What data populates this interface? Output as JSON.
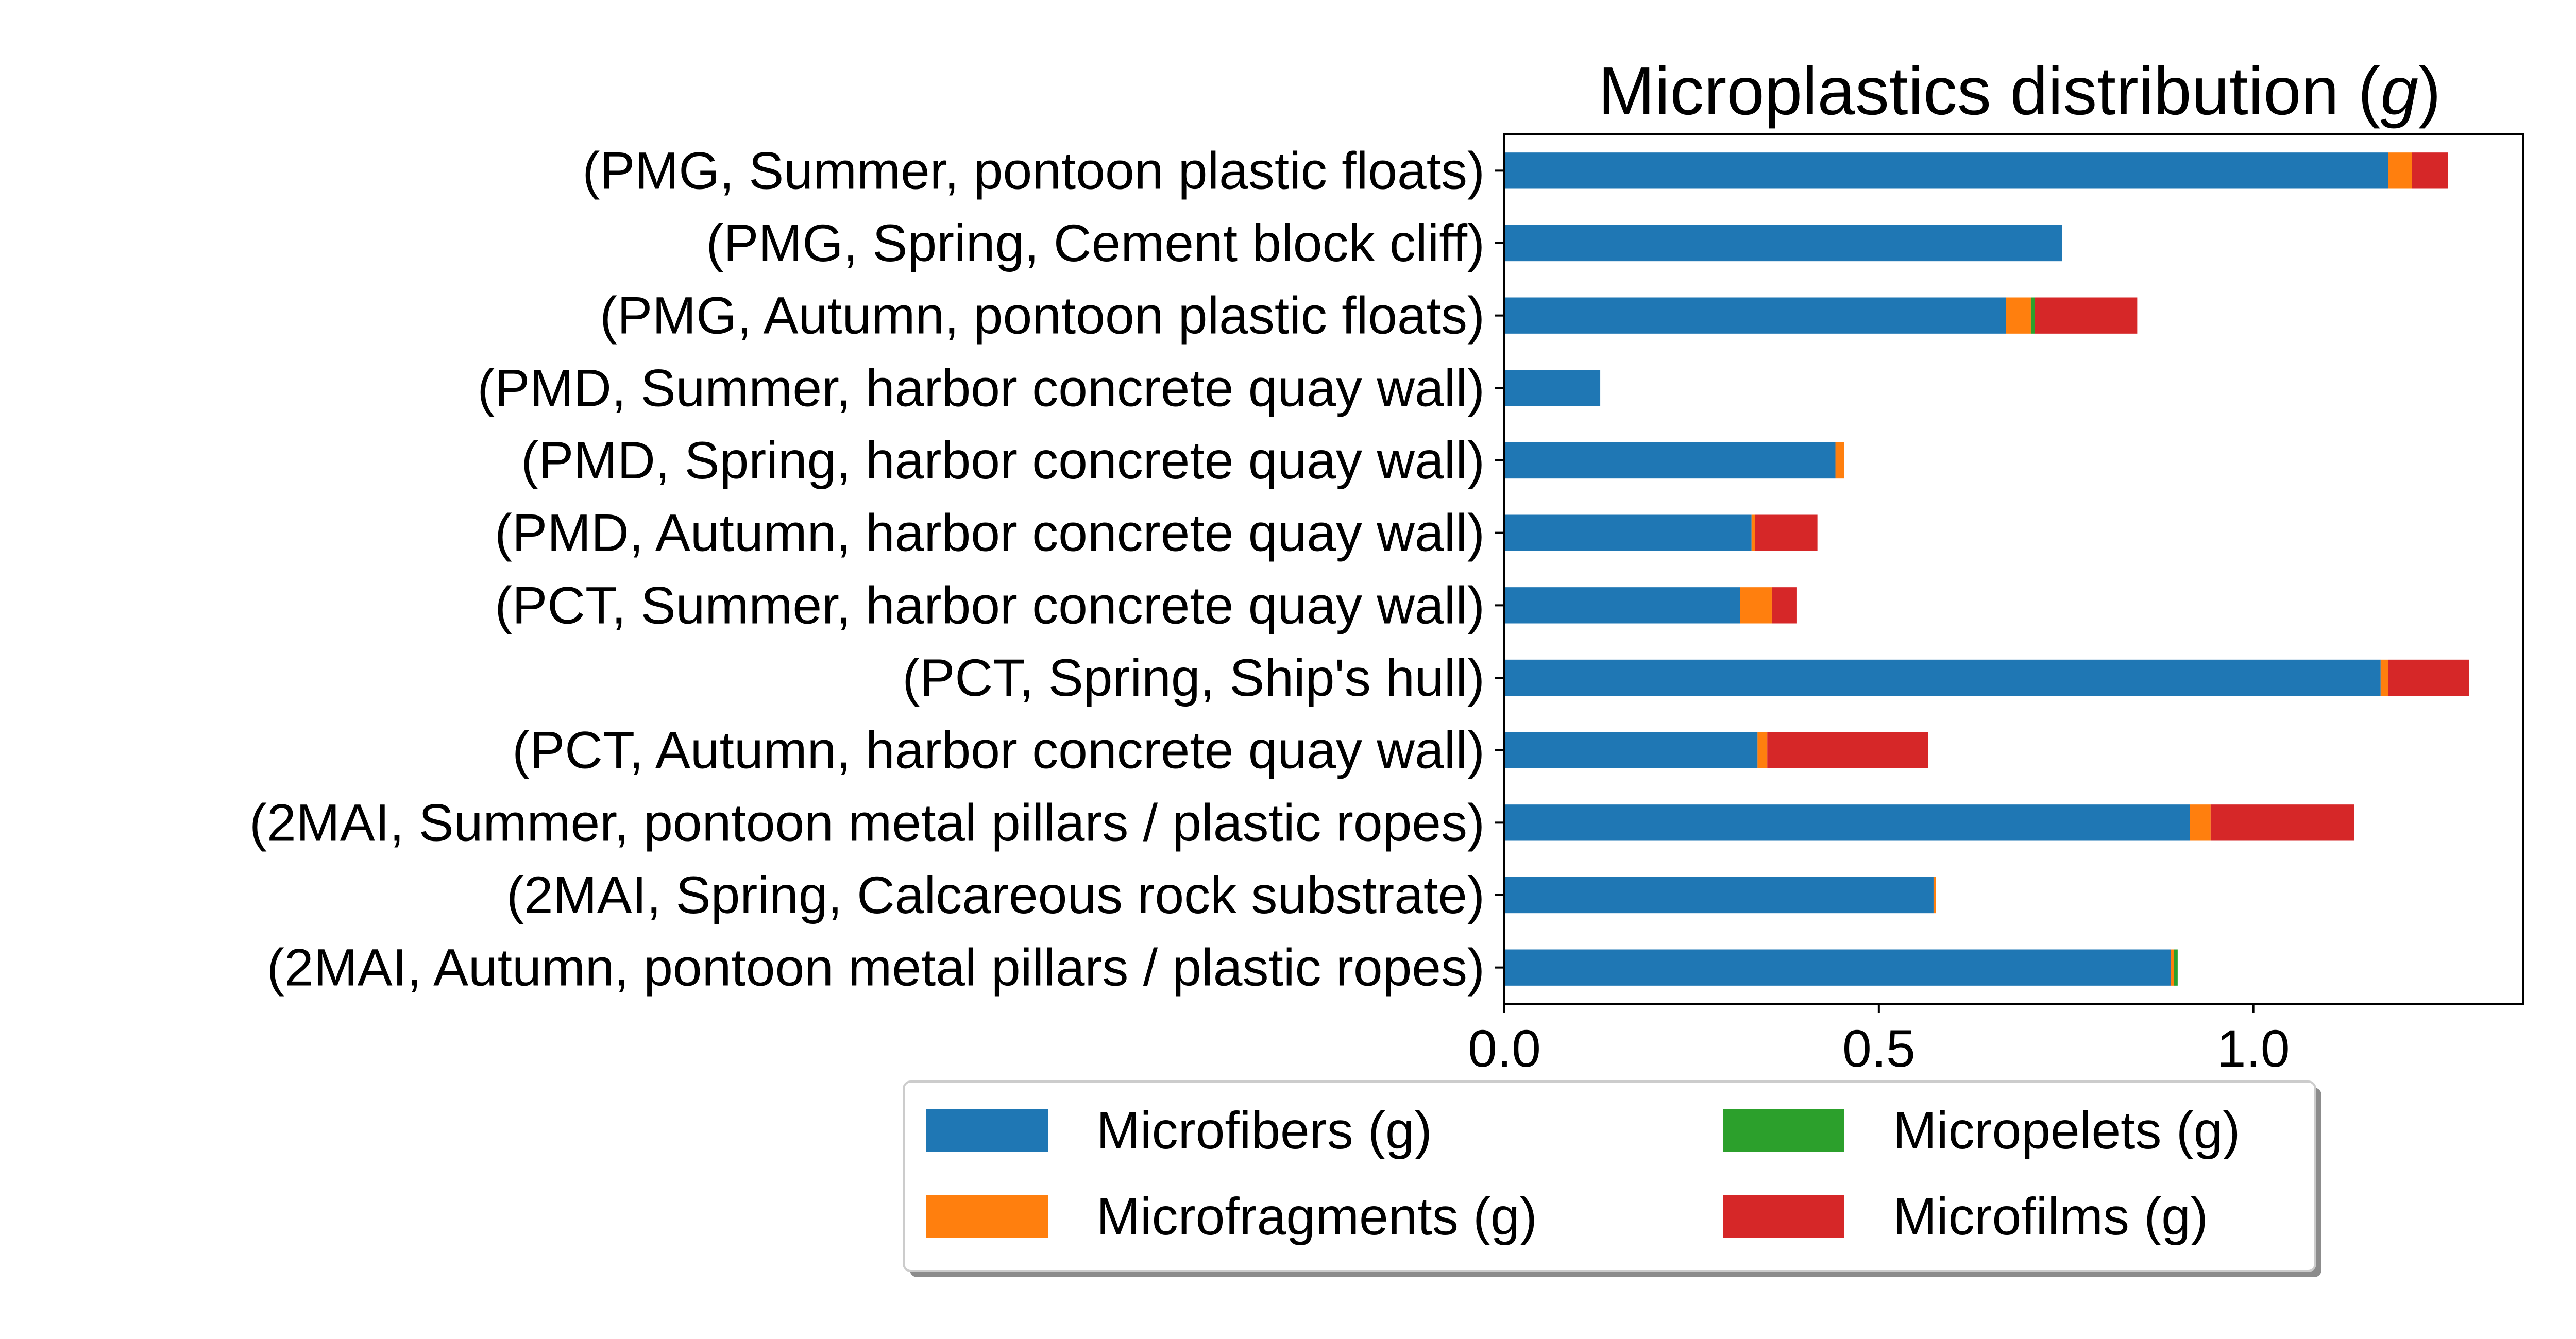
{
  "chart_data": {
    "type": "bar",
    "orientation": "horizontal",
    "stacked": true,
    "title_main": "Microplastics distribution (",
    "title_var": "g",
    "title_close": ")",
    "xlabel": "",
    "ylabel": "",
    "xlim": [
      0,
      1.36
    ],
    "xticks": [
      0.0,
      0.5,
      1.0
    ],
    "xtick_labels": [
      "0.0",
      "0.5",
      "1.0"
    ],
    "grid": false,
    "legend_position": "bottom-center",
    "categories": [
      "(PMG, Summer, pontoon plastic floats)",
      "(PMG, Spring, Cement block cliff)",
      "(PMG, Autumn, pontoon plastic floats)",
      "(PMD, Summer, harbor concrete quay wall)",
      "(PMD, Spring, harbor concrete quay wall)",
      "(PMD, Autumn, harbor concrete quay wall)",
      "(PCT, Summer, harbor concrete quay wall)",
      "(PCT, Spring, Ship's hull)",
      "(PCT, Autumn, harbor concrete quay wall)",
      "(2MAI, Summer, pontoon metal pillars / plastic ropes)",
      "(2MAI, Spring, Calcareous rock substrate)",
      "(2MAI, Autumn, pontoon metal pillars / plastic ropes)"
    ],
    "series": [
      {
        "name": "Microfibers (g)",
        "color": "#1f77b4",
        "values": [
          1.18,
          0.745,
          0.67,
          0.128,
          0.442,
          0.33,
          0.315,
          1.17,
          0.338,
          0.915,
          0.573,
          0.89
        ]
      },
      {
        "name": "Microfragments (g)",
        "color": "#ff7f0e",
        "values": [
          0.032,
          0.0,
          0.033,
          0.0,
          0.012,
          0.005,
          0.042,
          0.01,
          0.013,
          0.028,
          0.003,
          0.004
        ]
      },
      {
        "name": "Micropelets (g)",
        "color": "#2ca02c",
        "values": [
          0.0,
          0.0,
          0.005,
          0.0,
          0.0,
          0.0,
          0.0,
          0.0,
          0.0,
          0.0,
          0.0,
          0.005
        ]
      },
      {
        "name": "Microfilms (g)",
        "color": "#d62728",
        "values": [
          0.048,
          0.0,
          0.137,
          0.0,
          0.0,
          0.083,
          0.033,
          0.108,
          0.215,
          0.192,
          0.0,
          0.0
        ]
      }
    ]
  }
}
